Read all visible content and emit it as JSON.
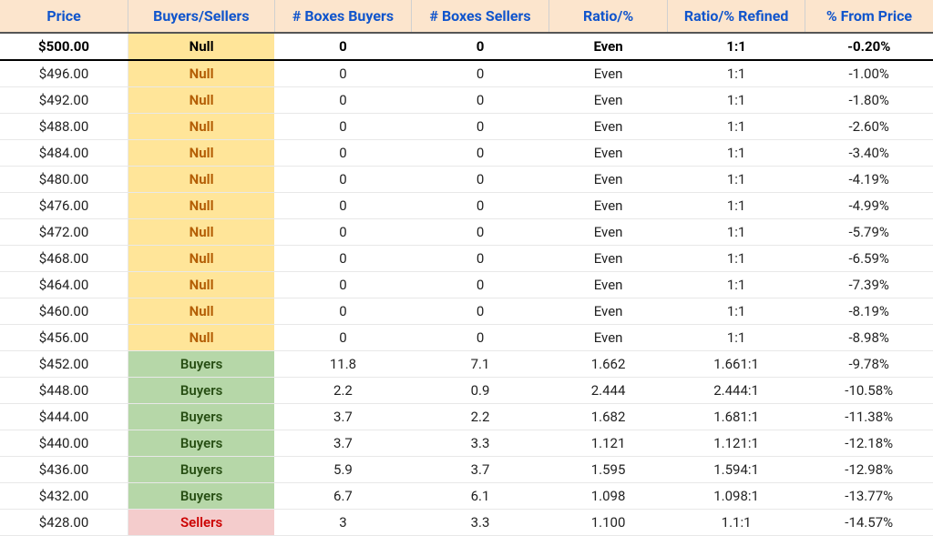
{
  "table": {
    "columns": [
      "Price",
      "Buyers/Sellers",
      "# Boxes Buyers",
      "# Boxes Sellers",
      "Ratio/%",
      "Ratio/% Refined",
      "% From Price"
    ],
    "col_widths": [
      "14%",
      "16%",
      "15%",
      "15%",
      "13%",
      "15%",
      "14%"
    ],
    "header_bg": "#fce5cd",
    "header_fg": "#1155cc",
    "colors": {
      "null_bg": "#ffe599",
      "null_fg": "#b45f06",
      "buyers_bg": "#b6d7a8",
      "buyers_fg": "#274e13",
      "sellers_bg": "#f4cccc",
      "sellers_fg": "#cc0000"
    },
    "rows": [
      {
        "price": "$500.00",
        "bs": "Null",
        "bs_class": "bs-null",
        "bb": "0",
        "bs_val": "0",
        "ratio": "Even",
        "refined": "1:1",
        "pct": "-0.20%"
      },
      {
        "price": "$496.00",
        "bs": "Null",
        "bs_class": "bs-null",
        "bb": "0",
        "bs_val": "0",
        "ratio": "Even",
        "refined": "1:1",
        "pct": "-1.00%"
      },
      {
        "price": "$492.00",
        "bs": "Null",
        "bs_class": "bs-null",
        "bb": "0",
        "bs_val": "0",
        "ratio": "Even",
        "refined": "1:1",
        "pct": "-1.80%"
      },
      {
        "price": "$488.00",
        "bs": "Null",
        "bs_class": "bs-null",
        "bb": "0",
        "bs_val": "0",
        "ratio": "Even",
        "refined": "1:1",
        "pct": "-2.60%"
      },
      {
        "price": "$484.00",
        "bs": "Null",
        "bs_class": "bs-null",
        "bb": "0",
        "bs_val": "0",
        "ratio": "Even",
        "refined": "1:1",
        "pct": "-3.40%"
      },
      {
        "price": "$480.00",
        "bs": "Null",
        "bs_class": "bs-null",
        "bb": "0",
        "bs_val": "0",
        "ratio": "Even",
        "refined": "1:1",
        "pct": "-4.19%"
      },
      {
        "price": "$476.00",
        "bs": "Null",
        "bs_class": "bs-null",
        "bb": "0",
        "bs_val": "0",
        "ratio": "Even",
        "refined": "1:1",
        "pct": "-4.99%"
      },
      {
        "price": "$472.00",
        "bs": "Null",
        "bs_class": "bs-null",
        "bb": "0",
        "bs_val": "0",
        "ratio": "Even",
        "refined": "1:1",
        "pct": "-5.79%"
      },
      {
        "price": "$468.00",
        "bs": "Null",
        "bs_class": "bs-null",
        "bb": "0",
        "bs_val": "0",
        "ratio": "Even",
        "refined": "1:1",
        "pct": "-6.59%"
      },
      {
        "price": "$464.00",
        "bs": "Null",
        "bs_class": "bs-null",
        "bb": "0",
        "bs_val": "0",
        "ratio": "Even",
        "refined": "1:1",
        "pct": "-7.39%"
      },
      {
        "price": "$460.00",
        "bs": "Null",
        "bs_class": "bs-null",
        "bb": "0",
        "bs_val": "0",
        "ratio": "Even",
        "refined": "1:1",
        "pct": "-8.19%"
      },
      {
        "price": "$456.00",
        "bs": "Null",
        "bs_class": "bs-null",
        "bb": "0",
        "bs_val": "0",
        "ratio": "Even",
        "refined": "1:1",
        "pct": "-8.98%"
      },
      {
        "price": "$452.00",
        "bs": "Buyers",
        "bs_class": "bs-buyers",
        "bb": "11.8",
        "bs_val": "7.1",
        "ratio": "1.662",
        "refined": "1.661:1",
        "pct": "-9.78%"
      },
      {
        "price": "$448.00",
        "bs": "Buyers",
        "bs_class": "bs-buyers",
        "bb": "2.2",
        "bs_val": "0.9",
        "ratio": "2.444",
        "refined": "2.444:1",
        "pct": "-10.58%"
      },
      {
        "price": "$444.00",
        "bs": "Buyers",
        "bs_class": "bs-buyers",
        "bb": "3.7",
        "bs_val": "2.2",
        "ratio": "1.682",
        "refined": "1.681:1",
        "pct": "-11.38%"
      },
      {
        "price": "$440.00",
        "bs": "Buyers",
        "bs_class": "bs-buyers",
        "bb": "3.7",
        "bs_val": "3.3",
        "ratio": "1.121",
        "refined": "1.121:1",
        "pct": "-12.18%"
      },
      {
        "price": "$436.00",
        "bs": "Buyers",
        "bs_class": "bs-buyers",
        "bb": "5.9",
        "bs_val": "3.7",
        "ratio": "1.595",
        "refined": "1.594:1",
        "pct": "-12.98%"
      },
      {
        "price": "$432.00",
        "bs": "Buyers",
        "bs_class": "bs-buyers",
        "bb": "6.7",
        "bs_val": "6.1",
        "ratio": "1.098",
        "refined": "1.098:1",
        "pct": "-13.77%"
      },
      {
        "price": "$428.00",
        "bs": "Sellers",
        "bs_class": "bs-sellers",
        "bb": "3",
        "bs_val": "3.3",
        "ratio": "1.100",
        "refined": "1.1:1",
        "pct": "-14.57%"
      }
    ]
  }
}
